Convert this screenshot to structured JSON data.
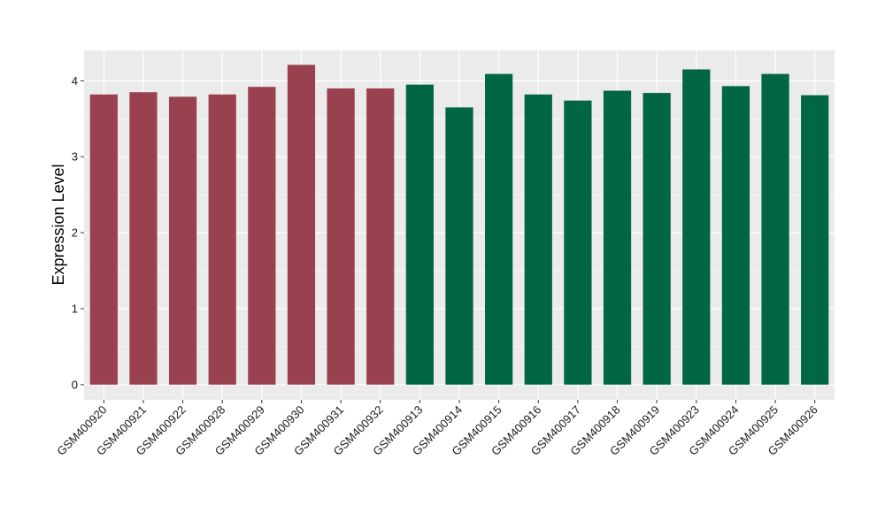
{
  "chart_data": {
    "type": "bar",
    "title": "",
    "xlabel": "",
    "ylabel": "Expression Level",
    "ylim": [
      -0.2,
      4.4
    ],
    "yticks": [
      0,
      1,
      2,
      3,
      4
    ],
    "grid": true,
    "legend": "none",
    "categories": [
      "GSM400920",
      "GSM400921",
      "GSM400922",
      "GSM400928",
      "GSM400929",
      "GSM400930",
      "GSM400931",
      "GSM400932",
      "GSM400913",
      "GSM400914",
      "GSM400915",
      "GSM400916",
      "GSM400917",
      "GSM400918",
      "GSM400919",
      "GSM400923",
      "GSM400924",
      "GSM400925",
      "GSM400926"
    ],
    "values": [
      3.82,
      3.85,
      3.79,
      3.82,
      3.92,
      4.21,
      3.9,
      3.9,
      3.95,
      3.65,
      4.09,
      3.82,
      3.74,
      3.87,
      3.84,
      4.15,
      3.93,
      4.09,
      3.81
    ],
    "groups": [
      0,
      0,
      0,
      0,
      0,
      0,
      0,
      0,
      1,
      1,
      1,
      1,
      1,
      1,
      1,
      1,
      1,
      1,
      1
    ],
    "group_colors": [
      "#9A4150",
      "#006644"
    ],
    "panel_color": "#EBEBEB"
  }
}
